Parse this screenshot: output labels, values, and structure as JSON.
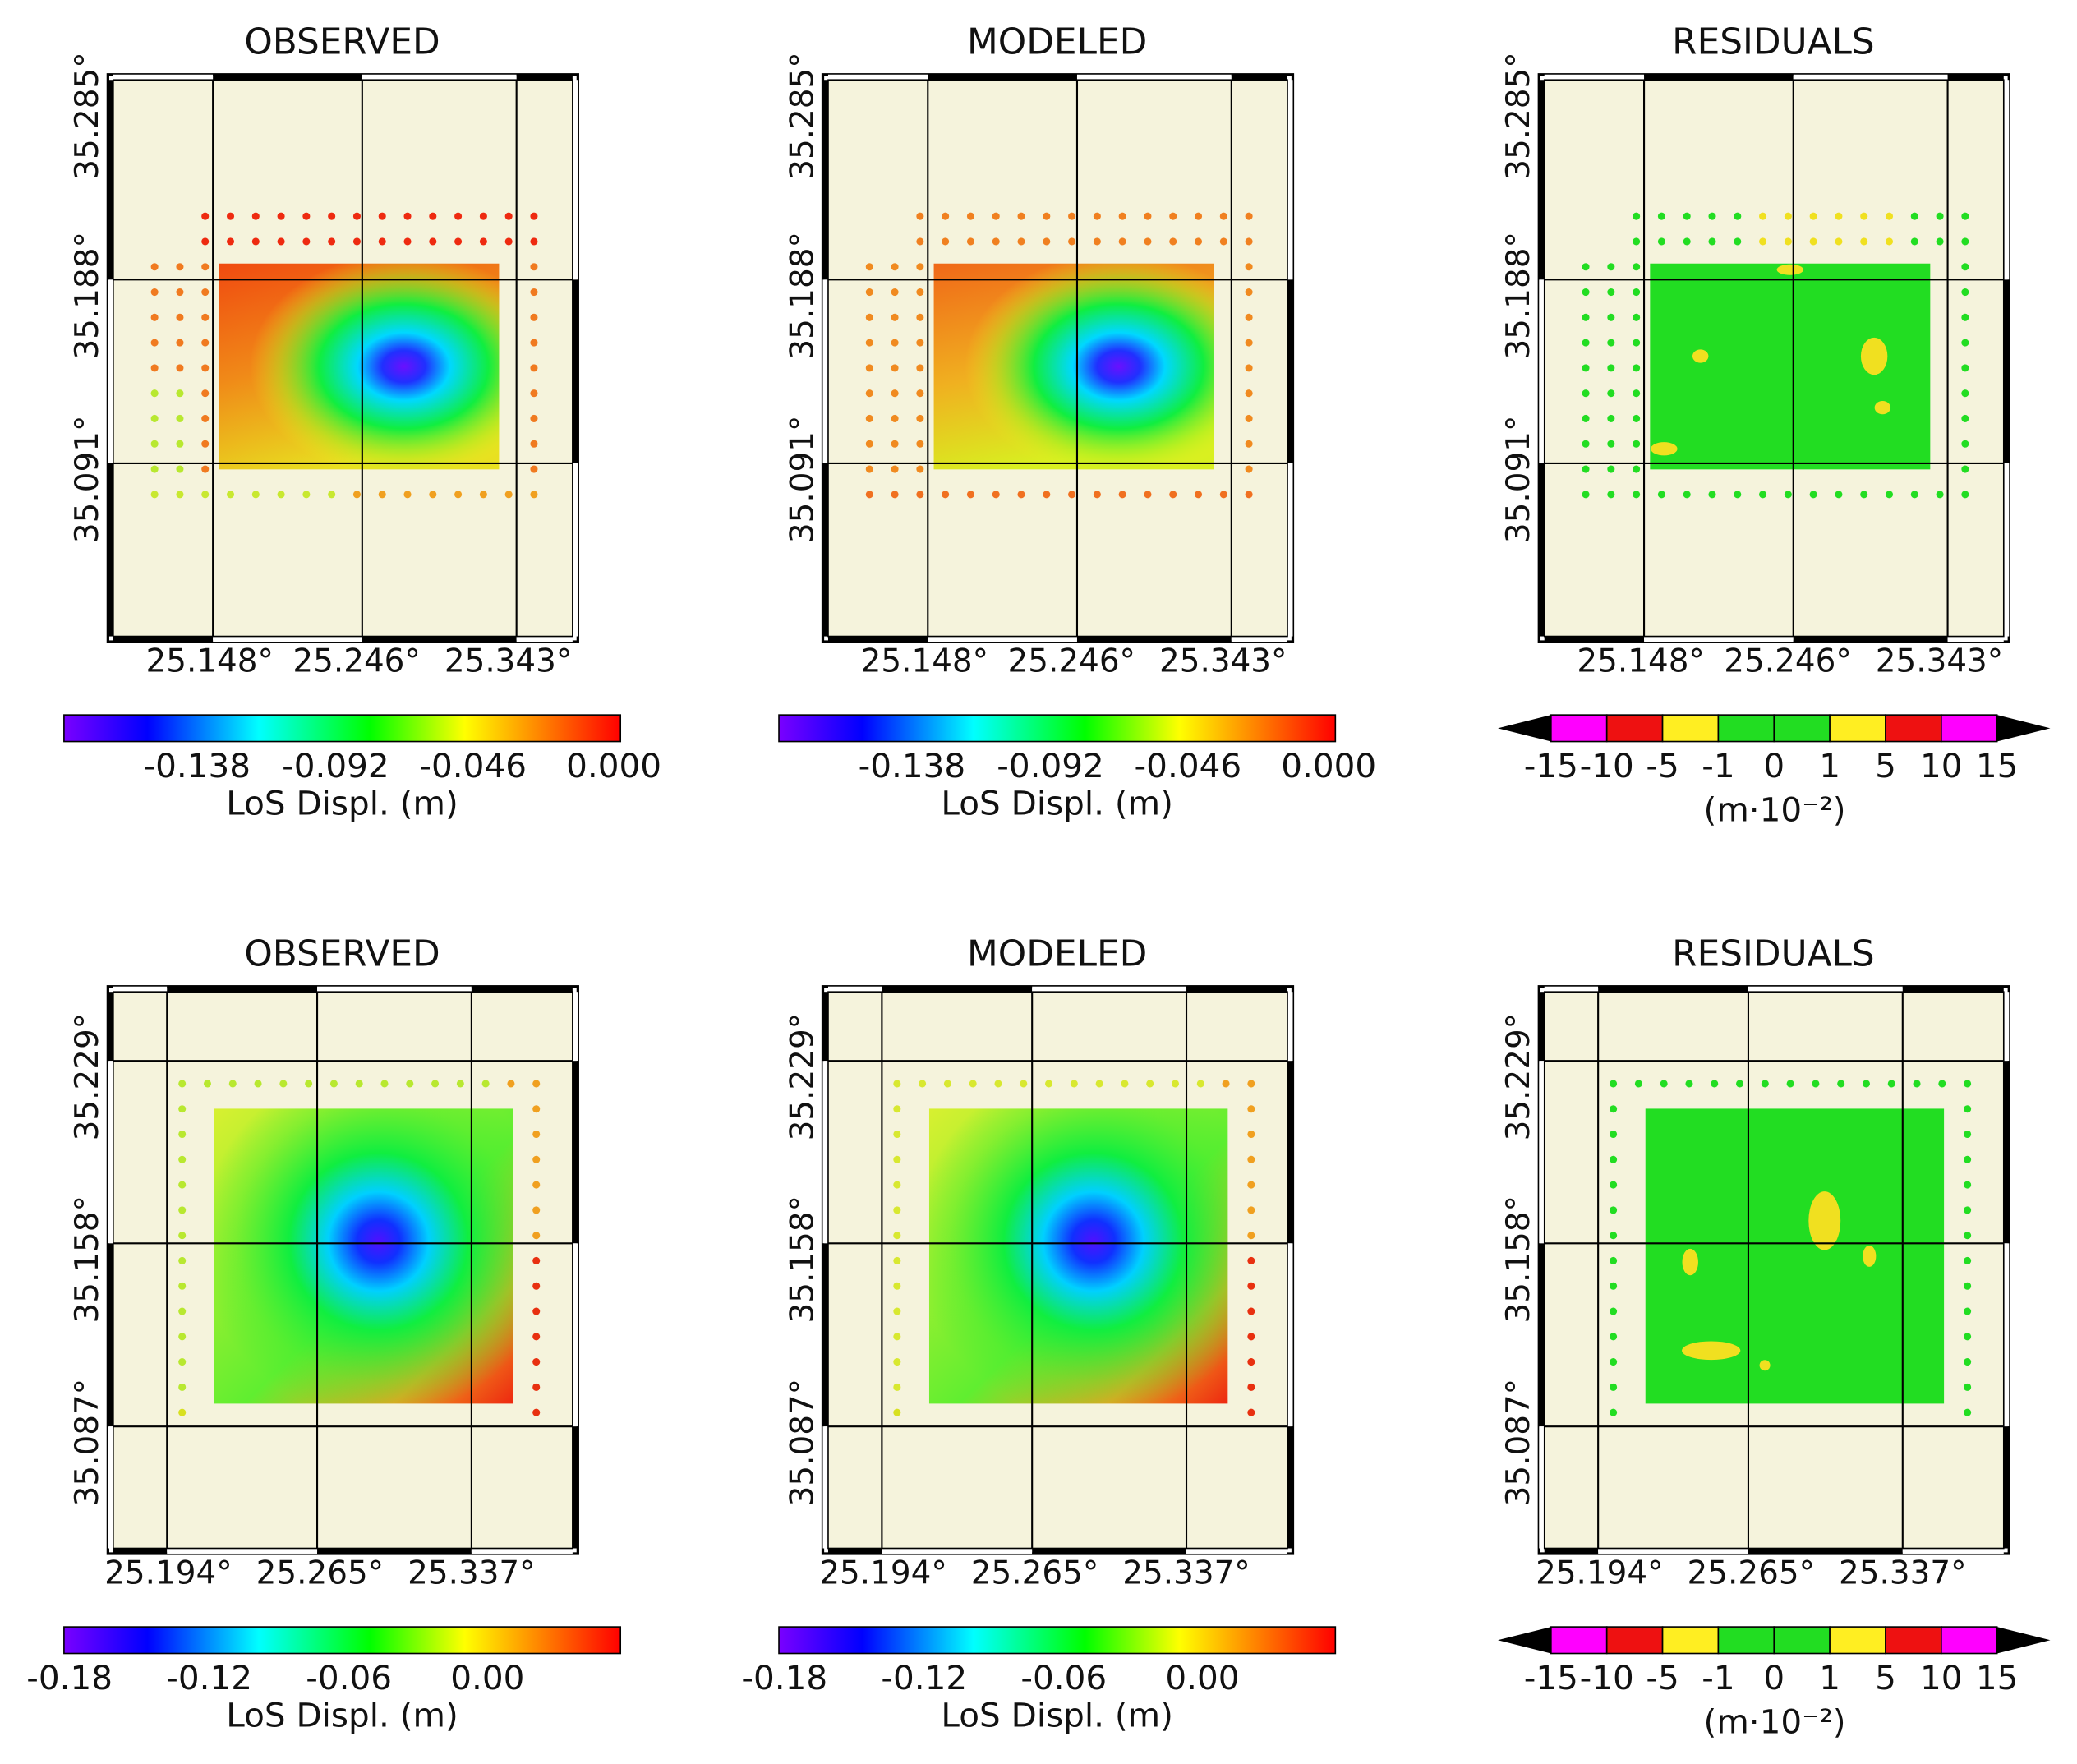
{
  "rows": [
    {
      "panels": [
        {
          "title": "OBSERVED",
          "lat_ticks": [
            "35.285°",
            "35.188°",
            "35.091°"
          ],
          "lon_ticks": [
            "25.148°",
            "25.246°",
            "25.343°"
          ],
          "colorbar": {
            "ticks": [
              "-0.138",
              "-0.092",
              "-0.046",
              "0.000"
            ],
            "label": "LoS Displ. (m)"
          }
        },
        {
          "title": "MODELED",
          "lat_ticks": [
            "35.285°",
            "35.188°",
            "35.091°"
          ],
          "lon_ticks": [
            "25.148°",
            "25.246°",
            "25.343°"
          ],
          "colorbar": {
            "ticks": [
              "-0.138",
              "-0.092",
              "-0.046",
              "0.000"
            ],
            "label": "LoS Displ. (m)"
          }
        },
        {
          "title": "RESIDUALS",
          "lat_ticks": [
            "35.285°",
            "35.188°",
            "35.091°"
          ],
          "lon_ticks": [
            "25.148°",
            "25.246°",
            "25.343°"
          ],
          "colorbar": {
            "ticks": [
              "-15",
              "-10",
              "-5",
              "-1",
              "0",
              "1",
              "5",
              "10",
              "15"
            ],
            "label": "(m·10⁻²)",
            "colors": [
              "#ff00ff",
              "#ee1111",
              "#ffee22",
              "#22dd22",
              "#22dd22",
              "#ffee22",
              "#ee1111",
              "#ff00ff"
            ]
          }
        }
      ]
    },
    {
      "panels": [
        {
          "title": "OBSERVED",
          "lat_ticks": [
            "35.229°",
            "35.158°",
            "35.087°"
          ],
          "lon_ticks": [
            "25.194°",
            "25.265°",
            "25.337°"
          ],
          "colorbar": {
            "ticks": [
              "-0.18",
              "-0.12",
              "-0.06",
              "0.00"
            ],
            "label": "LoS Displ. (m)"
          }
        },
        {
          "title": "MODELED",
          "lat_ticks": [
            "35.229°",
            "35.158°",
            "35.087°"
          ],
          "lon_ticks": [
            "25.194°",
            "25.265°",
            "25.337°"
          ],
          "colorbar": {
            "ticks": [
              "-0.18",
              "-0.12",
              "-0.06",
              "0.00"
            ],
            "label": "LoS Displ. (m)"
          }
        },
        {
          "title": "RESIDUALS",
          "lat_ticks": [
            "35.229°",
            "35.158°",
            "35.087°"
          ],
          "lon_ticks": [
            "25.194°",
            "25.265°",
            "25.337°"
          ],
          "colorbar": {
            "ticks": [
              "-15",
              "-10",
              "-5",
              "-1",
              "0",
              "1",
              "5",
              "10",
              "15"
            ],
            "label": "(m·10⁻²)",
            "colors": [
              "#ff00ff",
              "#ee1111",
              "#ffee22",
              "#22dd22",
              "#22dd22",
              "#ffee22",
              "#ee1111",
              "#ff00ff"
            ]
          }
        }
      ]
    }
  ]
}
